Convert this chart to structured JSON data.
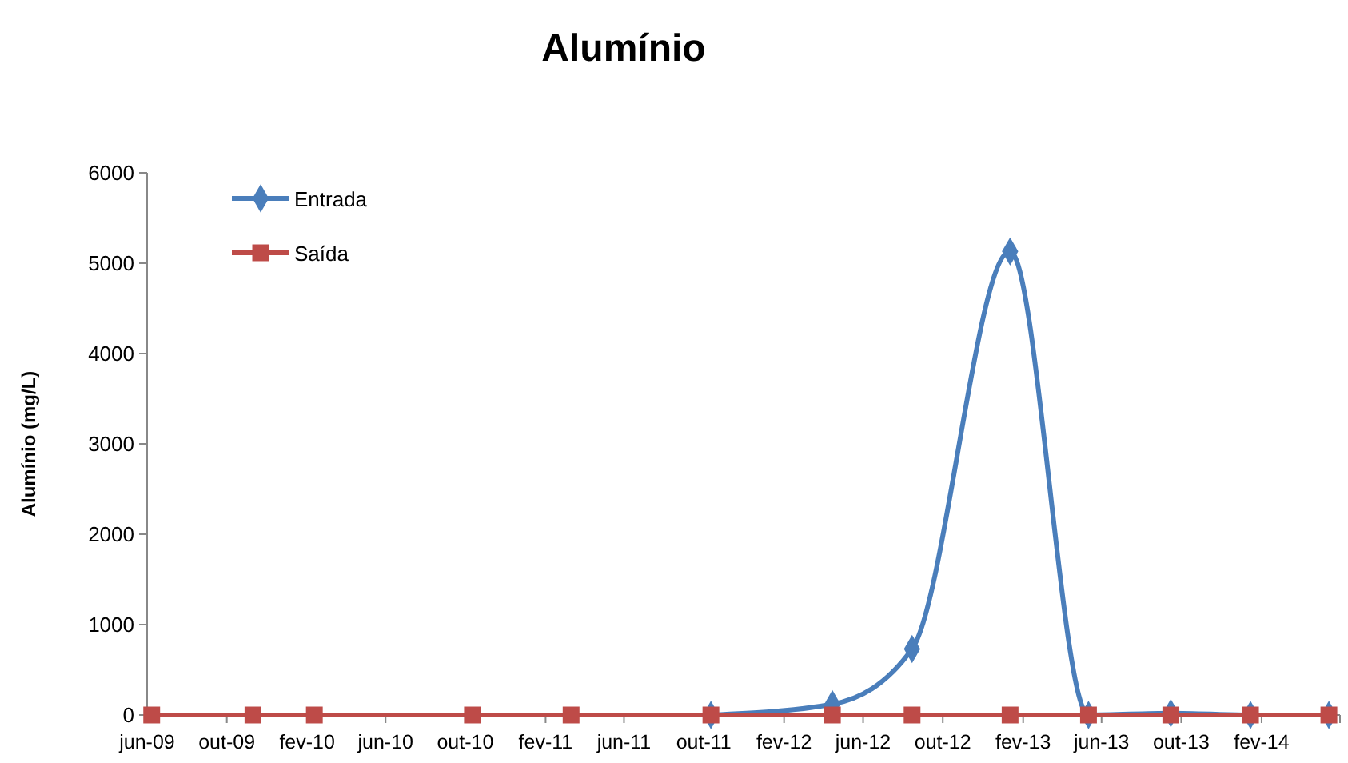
{
  "chart_data": {
    "type": "line",
    "title": "Alumínio",
    "ylabel": "Alumínio (mg/L)",
    "xlim": [
      "2009-06-01",
      "2014-06-01"
    ],
    "ylim": [
      0,
      6000
    ],
    "yticks": [
      0,
      1000,
      2000,
      3000,
      4000,
      5000,
      6000
    ],
    "xticks": [
      {
        "value": "2009-06-01",
        "label": "jun-09"
      },
      {
        "value": "2009-10-01",
        "label": "out-09"
      },
      {
        "value": "2010-02-01",
        "label": "fev-10"
      },
      {
        "value": "2010-06-01",
        "label": "jun-10"
      },
      {
        "value": "2010-10-01",
        "label": "out-10"
      },
      {
        "value": "2011-02-01",
        "label": "fev-11"
      },
      {
        "value": "2011-06-01",
        "label": "jun-11"
      },
      {
        "value": "2011-10-01",
        "label": "out-11"
      },
      {
        "value": "2012-02-01",
        "label": "fev-12"
      },
      {
        "value": "2012-06-01",
        "label": "jun-12"
      },
      {
        "value": "2012-10-01",
        "label": "out-12"
      },
      {
        "value": "2013-02-01",
        "label": "fev-13"
      },
      {
        "value": "2013-06-01",
        "label": "jun-13"
      },
      {
        "value": "2013-10-01",
        "label": "out-13"
      },
      {
        "value": "2014-02-01",
        "label": "fev-14"
      },
      {
        "value": "2014-06-01",
        "label": null
      }
    ],
    "grid": false,
    "legend": "top left",
    "series": [
      {
        "name": "Entrada",
        "color": "#4a7ebb",
        "marker": "diamond",
        "x": [
          "2011-10-12",
          "2012-04-15",
          "2012-08-15",
          "2013-01-12",
          "2013-05-12",
          "2013-09-15",
          "2014-01-15",
          "2014-05-15"
        ],
        "values": [
          0,
          120,
          730,
          5130,
          0,
          20,
          0,
          0
        ]
      },
      {
        "name": "Saída",
        "color": "#be4b48",
        "marker": "square",
        "x": [
          "2009-06-08",
          "2009-11-10",
          "2010-02-12",
          "2010-10-12",
          "2011-03-12",
          "2011-10-12",
          "2012-04-15",
          "2012-08-15",
          "2013-01-12",
          "2013-05-12",
          "2013-09-15",
          "2014-01-15",
          "2014-05-15"
        ],
        "values": [
          0,
          0,
          0,
          0,
          0,
          0,
          0,
          0,
          0,
          0,
          0,
          0,
          0
        ]
      }
    ]
  }
}
